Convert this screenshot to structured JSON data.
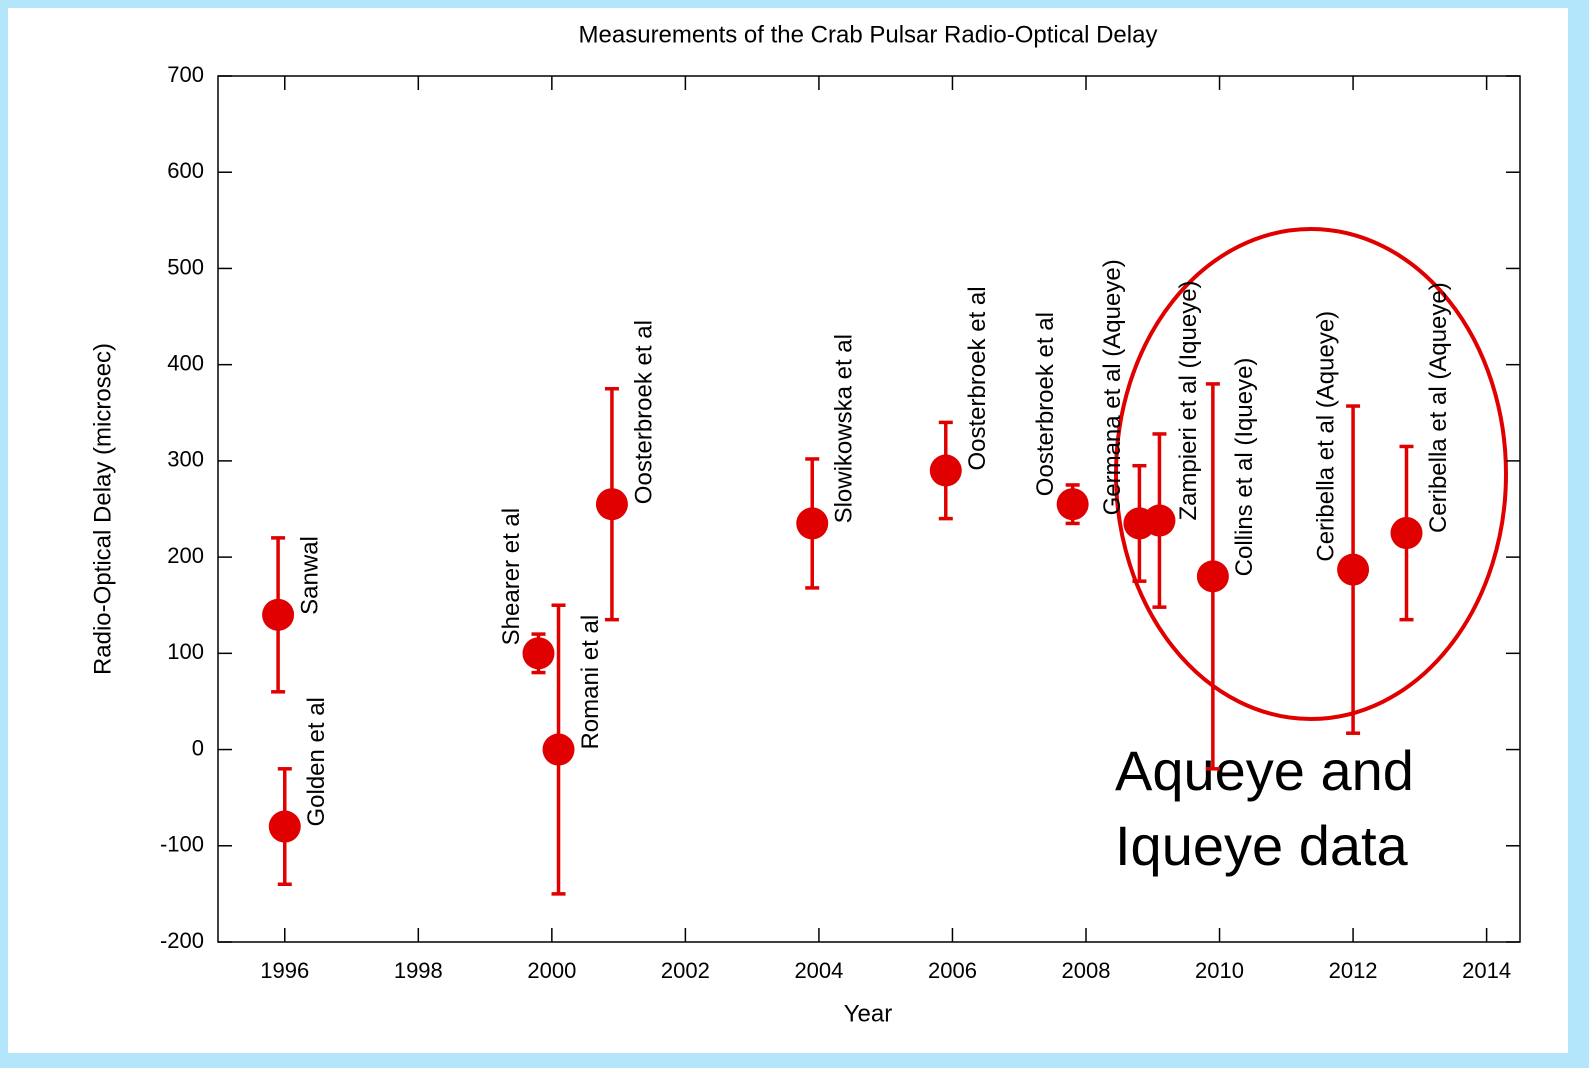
{
  "chart_data": {
    "type": "scatter",
    "title": "Measurements of the Crab Pulsar Radio-Optical Delay",
    "x_label": "Year",
    "y_label": "Radio-Optical Delay (microsec)",
    "x": [
      1995.9,
      1996.0,
      1999.8,
      2000.1,
      2000.9,
      2003.9,
      2005.9,
      2007.8,
      2008.8,
      2009.1,
      2009.9,
      2012.0,
      2012.8
    ],
    "values": [
      140,
      -80,
      100,
      0,
      255,
      235,
      290,
      255,
      235,
      238,
      180,
      187,
      225
    ],
    "errors": [
      80,
      60,
      20,
      150,
      120,
      67,
      50,
      20,
      60,
      90,
      200,
      170,
      90
    ],
    "point_labels": [
      "Sanwal",
      "Golden et al",
      "Shearer et al",
      "Romani et al",
      "Oosterbroek et al",
      "Slowikowska et al",
      "Oosterbroek et al",
      "Oosterbroek et al",
      "Germana et al (Aqueye)",
      "Zampieri et al (Iqueye)",
      "Collins et al (Iqueye)",
      "Ceribella et al (Aqueye)",
      "Ceribella et al (Aqueye)"
    ],
    "color": "#e00000",
    "xlim": [
      1995,
      2014.5
    ],
    "ylim": [
      -200,
      700
    ],
    "xticks": [
      1996,
      1998,
      2000,
      2002,
      2004,
      2006,
      2008,
      2010,
      2012,
      2014
    ],
    "yticks": [
      -200,
      -100,
      0,
      100,
      200,
      300,
      400,
      500,
      600,
      700
    ],
    "annotation": [
      "Aqueye and",
      "Iqueye data"
    ]
  }
}
